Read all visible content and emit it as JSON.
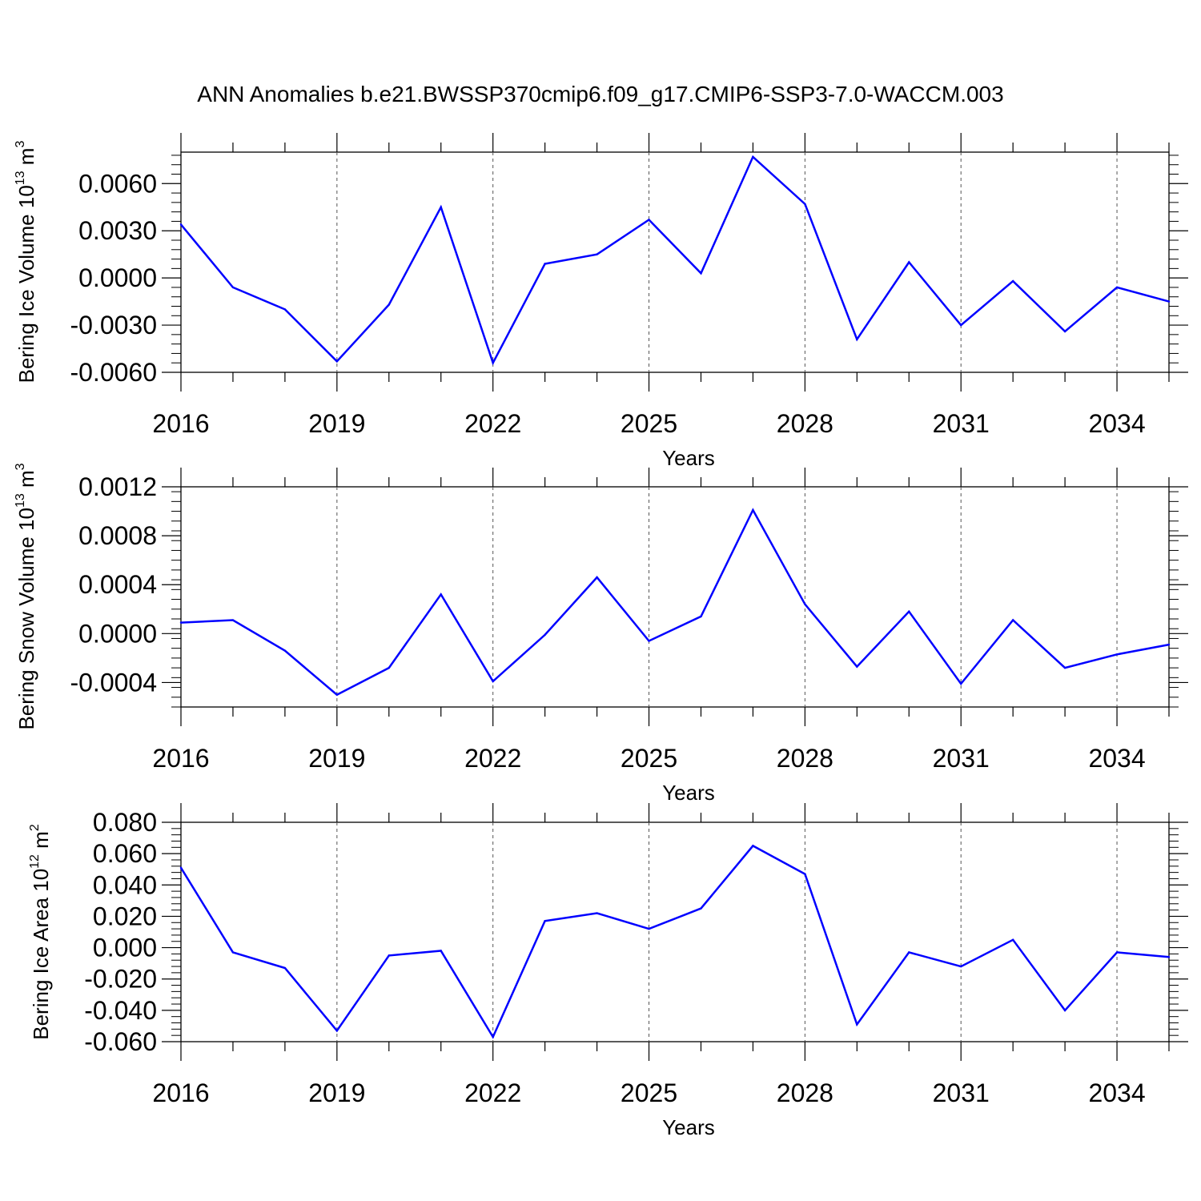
{
  "title": "ANN Anomalies b.e21.BWSSP370cmip6.f09_g17.CMIP6-SSP3-7.0-WACCM.003",
  "line_color": "#0000ff",
  "chart_data": [
    {
      "type": "line",
      "ylabel_main": "Bering Ice Volume 10",
      "ylabel_exp": "13",
      "ylabel_unit": " m",
      "ylabel_unit_exp": "3",
      "xlabel": "Years",
      "x": [
        2016,
        2017,
        2018,
        2019,
        2020,
        2021,
        2022,
        2023,
        2024,
        2025,
        2026,
        2027,
        2028,
        2029,
        2030,
        2031,
        2032,
        2033,
        2034,
        2035
      ],
      "values": [
        0.0034,
        -0.0006,
        -0.002,
        -0.0053,
        -0.0017,
        0.0045,
        -0.0054,
        0.0009,
        0.0015,
        0.0037,
        0.0003,
        0.0077,
        0.0047,
        -0.0039,
        0.001,
        -0.003,
        -0.0002,
        -0.0034,
        -0.0006,
        -0.0015
      ],
      "xlim": [
        2016,
        2035
      ],
      "ylim": [
        -0.006,
        0.008
      ],
      "yticks": [
        -0.006,
        -0.003,
        0.0,
        0.003,
        0.006
      ],
      "ytick_labels": [
        "-0.0060",
        "-0.0030",
        "0.0000",
        "0.0030",
        "0.0060"
      ],
      "xticks": [
        2016,
        2019,
        2022,
        2025,
        2028,
        2031,
        2034
      ],
      "xtick_labels": [
        "2016",
        "2019",
        "2022",
        "2025",
        "2028",
        "2031",
        "2034"
      ]
    },
    {
      "type": "line",
      "ylabel_main": "Bering Snow Volume 10",
      "ylabel_exp": "13",
      "ylabel_unit": " m",
      "ylabel_unit_exp": "3",
      "xlabel": "Years",
      "x": [
        2016,
        2017,
        2018,
        2019,
        2020,
        2021,
        2022,
        2023,
        2024,
        2025,
        2026,
        2027,
        2028,
        2029,
        2030,
        2031,
        2032,
        2033,
        2034,
        2035
      ],
      "values": [
        9e-05,
        0.00011,
        -0.00014,
        -0.0005,
        -0.00028,
        0.00032,
        -0.00039,
        -1e-05,
        0.00046,
        -6e-05,
        0.00014,
        0.00101,
        0.00024,
        -0.00027,
        0.00018,
        -0.00041,
        0.00011,
        -0.00028,
        -0.00017,
        -9e-05
      ],
      "xlim": [
        2016,
        2035
      ],
      "ylim": [
        -0.0006,
        0.0012
      ],
      "yticks": [
        -0.0004,
        0.0,
        0.0004,
        0.0008,
        0.0012
      ],
      "ytick_labels": [
        "-0.0004",
        "0.0000",
        "0.0004",
        "0.0008",
        "0.0012"
      ],
      "xticks": [
        2016,
        2019,
        2022,
        2025,
        2028,
        2031,
        2034
      ],
      "xtick_labels": [
        "2016",
        "2019",
        "2022",
        "2025",
        "2028",
        "2031",
        "2034"
      ]
    },
    {
      "type": "line",
      "ylabel_main": "Bering Ice Area 10",
      "ylabel_exp": "12",
      "ylabel_unit": " m",
      "ylabel_unit_exp": "2",
      "xlabel": "Years",
      "x": [
        2016,
        2017,
        2018,
        2019,
        2020,
        2021,
        2022,
        2023,
        2024,
        2025,
        2026,
        2027,
        2028,
        2029,
        2030,
        2031,
        2032,
        2033,
        2034,
        2035
      ],
      "values": [
        0.051,
        -0.003,
        -0.013,
        -0.053,
        -0.005,
        -0.002,
        -0.057,
        0.017,
        0.022,
        0.012,
        0.025,
        0.065,
        0.047,
        -0.049,
        -0.003,
        -0.012,
        0.005,
        -0.04,
        -0.003,
        -0.006
      ],
      "xlim": [
        2016,
        2035
      ],
      "ylim": [
        -0.06,
        0.08
      ],
      "yticks": [
        -0.06,
        -0.04,
        -0.02,
        0.0,
        0.02,
        0.04,
        0.06,
        0.08
      ],
      "ytick_labels": [
        "-0.060",
        "-0.040",
        "-0.020",
        "0.000",
        "0.020",
        "0.040",
        "0.060",
        "0.080"
      ],
      "xticks": [
        2016,
        2019,
        2022,
        2025,
        2028,
        2031,
        2034
      ],
      "xtick_labels": [
        "2016",
        "2019",
        "2022",
        "2025",
        "2028",
        "2031",
        "2034"
      ]
    }
  ]
}
